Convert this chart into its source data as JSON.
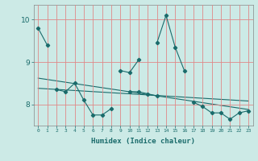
{
  "x": [
    0,
    1,
    2,
    3,
    4,
    5,
    6,
    7,
    8,
    9,
    10,
    11,
    12,
    13,
    14,
    15,
    16,
    17,
    18,
    19,
    20,
    21,
    22,
    23
  ],
  "line1": [
    9.8,
    9.4,
    null,
    null,
    null,
    null,
    null,
    null,
    null,
    8.8,
    8.75,
    9.05,
    null,
    9.45,
    10.1,
    9.35,
    8.8,
    null,
    null,
    null,
    null,
    null,
    null,
    null
  ],
  "line2": [
    null,
    null,
    8.35,
    8.3,
    8.5,
    8.1,
    7.75,
    7.75,
    7.9,
    null,
    8.3,
    8.3,
    8.25,
    8.2,
    null,
    null,
    null,
    8.05,
    7.95,
    7.8,
    7.8,
    7.65,
    7.8,
    7.85
  ],
  "trend1_x": [
    0,
    23
  ],
  "trend1_y": [
    8.62,
    7.88
  ],
  "trend2_x": [
    0,
    23
  ],
  "trend2_y": [
    8.38,
    8.08
  ],
  "background_color": "#cceae6",
  "grid_color": "#e08888",
  "line_color": "#1a6b6b",
  "xlabel": "Humidex (Indice chaleur)",
  "ylim": [
    7.5,
    10.35
  ],
  "xlim": [
    -0.5,
    23.5
  ],
  "yticks": [
    8,
    9,
    10
  ],
  "xticks": [
    0,
    1,
    2,
    3,
    4,
    5,
    6,
    7,
    8,
    9,
    10,
    11,
    12,
    13,
    14,
    15,
    16,
    17,
    18,
    19,
    20,
    21,
    22,
    23
  ]
}
